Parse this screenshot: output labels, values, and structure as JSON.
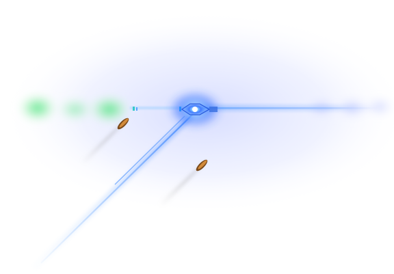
{
  "scene": {
    "background": "#ffffff",
    "haze_color": "#d7dcff",
    "beam_color": "#6aa8ff",
    "core_color": "#2f7bff",
    "green_glow_color": "#3ed85a",
    "tail_glow_color": "#a9b4ff",
    "projectile_color": "#b8732e",
    "smoke_color": "#8a8a8a"
  },
  "elements": {
    "energy_core": "energy-core",
    "horizontal_beam": "horizontal-beam",
    "diagonal_beam": "diagonal-beam",
    "green_glow": "green-glow",
    "tail_glow": "tail-glow",
    "projectiles": [
      "projectile-1",
      "projectile-2"
    ]
  }
}
